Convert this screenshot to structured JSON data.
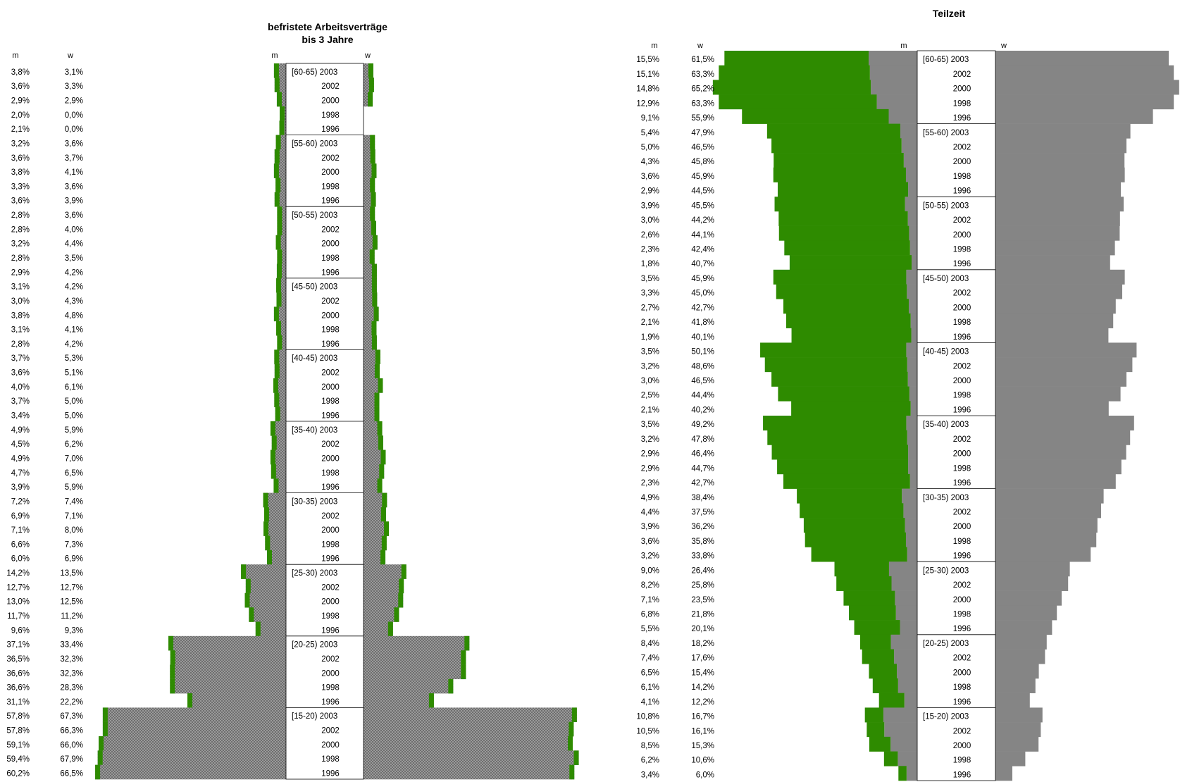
{
  "colors": {
    "green": "#2e8b00",
    "gray": "#858585",
    "hatch_a": "#9a9a9a",
    "hatch_b": "#6e6e6e"
  },
  "chart_data": [
    {
      "type": "bar",
      "subtype": "population-pyramid",
      "title_lines": [
        "befristete Arbeitsverträge",
        "bis 3 Jahre"
      ],
      "col_m": "m",
      "col_w": "w",
      "series": [
        {
          "name": "m"
        },
        {
          "name": "w"
        }
      ],
      "groups": [
        {
          "label": "[60-65)",
          "years": [
            "2003",
            "2002",
            "2000",
            "1998",
            "1996"
          ],
          "m": [
            3.8,
            3.6,
            2.9,
            2.0,
            2.1
          ],
          "w": [
            3.1,
            3.3,
            2.9,
            0.0,
            0.0
          ]
        },
        {
          "label": "[55-60)",
          "years": [
            "2003",
            "2002",
            "2000",
            "1998",
            "1996"
          ],
          "m": [
            3.2,
            3.6,
            3.8,
            3.3,
            3.6
          ],
          "w": [
            3.6,
            3.7,
            4.1,
            3.6,
            3.9
          ]
        },
        {
          "label": "[50-55)",
          "years": [
            "2003",
            "2002",
            "2000",
            "1998",
            "1996"
          ],
          "m": [
            2.8,
            2.8,
            3.2,
            2.8,
            2.9
          ],
          "w": [
            3.6,
            4.0,
            4.4,
            3.5,
            4.2
          ]
        },
        {
          "label": "[45-50)",
          "years": [
            "2003",
            "2002",
            "2000",
            "1998",
            "1996"
          ],
          "m": [
            3.1,
            3.0,
            3.8,
            3.1,
            2.8
          ],
          "w": [
            4.2,
            4.3,
            4.8,
            4.1,
            4.2
          ]
        },
        {
          "label": "[40-45)",
          "years": [
            "2003",
            "2002",
            "2000",
            "1998",
            "1996"
          ],
          "m": [
            3.7,
            3.6,
            4.0,
            3.7,
            3.4
          ],
          "w": [
            5.3,
            5.1,
            6.1,
            5.0,
            5.0
          ]
        },
        {
          "label": "[35-40)",
          "years": [
            "2003",
            "2002",
            "2000",
            "1998",
            "1996"
          ],
          "m": [
            4.9,
            4.5,
            4.9,
            4.7,
            3.9
          ],
          "w": [
            5.9,
            6.2,
            7.0,
            6.5,
            5.9
          ]
        },
        {
          "label": "[30-35)",
          "years": [
            "2003",
            "2002",
            "2000",
            "1998",
            "1996"
          ],
          "m": [
            7.2,
            6.9,
            7.1,
            6.6,
            6.0
          ],
          "w": [
            7.4,
            7.1,
            8.0,
            7.3,
            6.9
          ]
        },
        {
          "label": "[25-30)",
          "years": [
            "2003",
            "2002",
            "2000",
            "1998",
            "1996"
          ],
          "m": [
            14.2,
            12.7,
            13.0,
            11.7,
            9.6
          ],
          "w": [
            13.5,
            12.7,
            12.5,
            11.2,
            9.3
          ]
        },
        {
          "label": "[20-25)",
          "years": [
            "2003",
            "2002",
            "2000",
            "1998",
            "1996"
          ],
          "m": [
            37.1,
            36.5,
            36.6,
            36.6,
            31.1
          ],
          "w": [
            33.4,
            32.3,
            32.3,
            28.3,
            22.2
          ]
        },
        {
          "label": "[15-20)",
          "years": [
            "2003",
            "2002",
            "2000",
            "1998",
            "1996"
          ],
          "m": [
            57.8,
            57.8,
            59.1,
            59.4,
            60.2
          ],
          "w": [
            67.3,
            66.3,
            66.0,
            67.9,
            66.5
          ]
        }
      ]
    },
    {
      "type": "bar",
      "subtype": "population-pyramid",
      "title_lines": [
        "Teilzeit"
      ],
      "col_m": "m",
      "col_w": "w",
      "series": [
        {
          "name": "m"
        },
        {
          "name": "w"
        }
      ],
      "groups": [
        {
          "label": "[60-65)",
          "years": [
            "2003",
            "2002",
            "2000",
            "1998",
            "1996"
          ],
          "m": [
            15.5,
            15.1,
            14.8,
            12.9,
            9.1
          ],
          "w": [
            61.5,
            63.3,
            65.2,
            63.3,
            55.9
          ]
        },
        {
          "label": "[55-60)",
          "years": [
            "2003",
            "2002",
            "2000",
            "1998",
            "1996"
          ],
          "m": [
            5.4,
            5.0,
            4.3,
            3.6,
            2.9
          ],
          "w": [
            47.9,
            46.5,
            45.8,
            45.9,
            44.5
          ]
        },
        {
          "label": "[50-55)",
          "years": [
            "2003",
            "2002",
            "2000",
            "1998",
            "1996"
          ],
          "m": [
            3.9,
            3.0,
            2.6,
            2.3,
            1.8
          ],
          "w": [
            45.5,
            44.2,
            44.1,
            42.4,
            40.7
          ]
        },
        {
          "label": "[45-50)",
          "years": [
            "2003",
            "2002",
            "2000",
            "1998",
            "1996"
          ],
          "m": [
            3.5,
            3.3,
            2.7,
            2.1,
            1.9
          ],
          "w": [
            45.9,
            45.0,
            42.7,
            41.8,
            40.1
          ]
        },
        {
          "label": "[40-45)",
          "years": [
            "2003",
            "2002",
            "2000",
            "1998",
            "1996"
          ],
          "m": [
            3.5,
            3.2,
            3.0,
            2.5,
            2.1
          ],
          "w": [
            50.1,
            48.6,
            46.5,
            44.4,
            40.2
          ]
        },
        {
          "label": "[35-40)",
          "years": [
            "2003",
            "2002",
            "2000",
            "1998",
            "1996"
          ],
          "m": [
            3.5,
            3.2,
            2.9,
            2.9,
            2.3
          ],
          "w": [
            49.2,
            47.8,
            46.4,
            44.7,
            42.7
          ]
        },
        {
          "label": "[30-35)",
          "years": [
            "2003",
            "2002",
            "2000",
            "1998",
            "1996"
          ],
          "m": [
            4.9,
            4.4,
            3.9,
            3.6,
            3.2
          ],
          "w": [
            38.4,
            37.5,
            36.2,
            35.8,
            33.8
          ]
        },
        {
          "label": "[25-30)",
          "years": [
            "2003",
            "2002",
            "2000",
            "1998",
            "1996"
          ],
          "m": [
            9.0,
            8.2,
            7.1,
            6.8,
            5.5
          ],
          "w": [
            26.4,
            25.8,
            23.5,
            21.8,
            20.1
          ]
        },
        {
          "label": "[20-25)",
          "years": [
            "2003",
            "2002",
            "2000",
            "1998",
            "1996"
          ],
          "m": [
            8.4,
            7.4,
            6.5,
            6.1,
            4.1
          ],
          "w": [
            18.2,
            17.6,
            15.4,
            14.2,
            12.2
          ]
        },
        {
          "label": "[15-20)",
          "years": [
            "2003",
            "2002",
            "2000",
            "1998",
            "1996"
          ],
          "m": [
            10.8,
            10.5,
            8.5,
            6.2,
            3.4
          ],
          "w": [
            16.7,
            16.1,
            15.3,
            10.6,
            6.0
          ]
        }
      ]
    }
  ]
}
